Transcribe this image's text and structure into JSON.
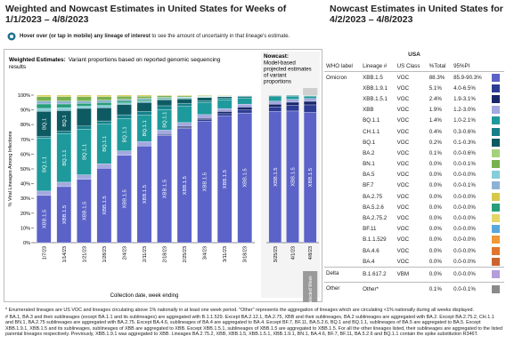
{
  "header": {
    "left_title": "Weighted and Nowcast Estimates in United States for Weeks of 1/1/2023 – 4/8/2023",
    "right_title": "Nowcast Estimates in United States for 4/2/2023 – 4/8/2023",
    "hover_bold": "Hover over (or tap in mobile) any lineage of interest",
    "hover_rest": "to see the amount of uncertainty in that lineage's estimate."
  },
  "chart_data": [
    {
      "type": "bar",
      "stacked": true,
      "title": "Weighted Estimates:",
      "subtitle": "Variant proportions based on reported genomic sequencing results",
      "ylabel": "% Viral Lineages Among Infections",
      "xlabel": "Collection date, week ending",
      "categories": [
        "1/7/23",
        "1/14/23",
        "1/21/23",
        "1/28/23",
        "2/4/23",
        "2/11/23",
        "2/18/23",
        "2/25/23",
        "3/4/23",
        "3/11/23",
        "3/18/23"
      ],
      "ylim": [
        0,
        100
      ],
      "yticks": [
        {
          "value": 0,
          "label": "0%"
        },
        {
          "value": 10,
          "label": "10%"
        },
        {
          "value": 20,
          "label": "20%"
        },
        {
          "value": 30,
          "label": "30%"
        },
        {
          "value": 40,
          "label": "40%"
        },
        {
          "value": 50,
          "label": "50%"
        },
        {
          "value": 60,
          "label": "60%"
        },
        {
          "value": 70,
          "label": "70%"
        },
        {
          "value": 80,
          "label": "80%"
        },
        {
          "value": 90,
          "label": "90%"
        },
        {
          "value": 100,
          "label": "100%"
        }
      ],
      "series": [
        {
          "name": "XBB.1.5",
          "color": "#5b63c8",
          "values": [
            32,
            38,
            43,
            50.5,
            59.2,
            65.5,
            72.8,
            77.4,
            82.3,
            85.9,
            87.9
          ]
        },
        {
          "name": "XBB.1.9.1",
          "color": "#2c3c94",
          "values": [
            0,
            0,
            0,
            0,
            0,
            0,
            0,
            0.5,
            1,
            1.5,
            2
          ]
        },
        {
          "name": "XBB.1.5.1",
          "color": "#18266b",
          "values": [
            0,
            0,
            0,
            0,
            0,
            0,
            0.5,
            1,
            1,
            1.5,
            2
          ]
        },
        {
          "name": "XBB",
          "color": "#a3a8df",
          "values": [
            3,
            3,
            3,
            3,
            3,
            3,
            3,
            2.5,
            2.5,
            2,
            2
          ]
        },
        {
          "name": "BQ.1.1",
          "color": "#1e9a9c",
          "values": [
            36,
            33,
            31,
            27,
            22,
            18,
            14,
            11,
            8,
            6,
            4
          ]
        },
        {
          "name": "CH.1.1",
          "color": "#15808a",
          "values": [
            1,
            1.5,
            2,
            2,
            2.5,
            2.5,
            2.5,
            2,
            1.5,
            1,
            1
          ]
        },
        {
          "name": "BQ.1",
          "color": "#0e5a62",
          "values": [
            17,
            14,
            12,
            9,
            7,
            6,
            4,
            3,
            2,
            1,
            0.5
          ]
        },
        {
          "name": "BA.5",
          "color": "#84cdd9",
          "values": [
            2,
            2,
            1.5,
            1.5,
            1,
            1,
            0.5,
            0.5,
            0.3,
            0.2,
            0.1
          ]
        },
        {
          "name": "BA.5.2.6",
          "color": "#279e7b",
          "values": [
            3,
            2.5,
            2,
            2,
            1.5,
            1,
            0.7,
            0.5,
            0.3,
            0.2,
            0.1
          ]
        },
        {
          "name": "BF.7",
          "color": "#8db2d3",
          "values": [
            2,
            2,
            1.5,
            1.5,
            1,
            0.8,
            0.5,
            0.4,
            0.3,
            0.2,
            0.1
          ]
        },
        {
          "name": "BN.1",
          "color": "#78b14f",
          "values": [
            3,
            3,
            3,
            2.5,
            2,
            1.5,
            1,
            0.8,
            0.5,
            0.3,
            0.2
          ]
        },
        {
          "name": "BA.2.75",
          "color": "#d6c94a",
          "values": [
            1,
            1,
            1,
            1,
            0.8,
            0.7,
            0.5,
            0.4,
            0.3,
            0.2,
            0.1
          ]
        }
      ]
    },
    {
      "type": "bar",
      "stacked": true,
      "title": "Nowcast:",
      "subtitle": "Model-based projected estimates of variant proportions",
      "selected_label": "Selected Week",
      "categories": [
        "3/25/23",
        "4/1/23",
        "4/8/23"
      ],
      "ylim": [
        0,
        100
      ],
      "series": [
        {
          "name": "XBB.1.5",
          "color": "#5b63c8",
          "values": [
            88.9,
            89.2,
            88.3
          ]
        },
        {
          "name": "XBB.1.9.1",
          "color": "#2c3c94",
          "values": [
            3,
            4,
            5.1
          ]
        },
        {
          "name": "XBB.1.5.1",
          "color": "#18266b",
          "values": [
            2,
            2,
            2.4
          ]
        },
        {
          "name": "XBB",
          "color": "#a3a8df",
          "values": [
            2,
            2,
            1.9
          ]
        },
        {
          "name": "BQ.1.1",
          "color": "#1e9a9c",
          "values": [
            3,
            2,
            1.4
          ]
        },
        {
          "name": "CH.1.1",
          "color": "#15808a",
          "values": [
            0.6,
            0.5,
            0.4
          ]
        },
        {
          "name": "BQ.1",
          "color": "#0e5a62",
          "values": [
            0.3,
            0.3,
            0.2
          ]
        }
      ]
    }
  ],
  "table": {
    "region": "USA",
    "headers": [
      "WHO label",
      "Lineage #",
      "US Class",
      "%Total",
      "95%PI"
    ],
    "groups": [
      {
        "label": "Omicron",
        "rows": [
          {
            "lineage": "XBB.1.5",
            "class": "VOC",
            "total": "88.3%",
            "pi": "85.9-90.3%",
            "color": "#5b63c8"
          },
          {
            "lineage": "XBB.1.9.1",
            "class": "VOC",
            "total": "5.1%",
            "pi": "4.0-6.5%",
            "color": "#2c3c94"
          },
          {
            "lineage": "XBB.1.5.1",
            "class": "VOC",
            "total": "2.4%",
            "pi": "1.9-3.1%",
            "color": "#18266b"
          },
          {
            "lineage": "XBB",
            "class": "VOC",
            "total": "1.9%",
            "pi": "1.2-3.0%",
            "color": "#a3a8df"
          },
          {
            "lineage": "BQ.1.1",
            "class": "VOC",
            "total": "1.4%",
            "pi": "1.0-2.1%",
            "color": "#1e9a9c"
          },
          {
            "lineage": "CH.1.1",
            "class": "VOC",
            "total": "0.4%",
            "pi": "0.3-0.6%",
            "color": "#15808a"
          },
          {
            "lineage": "BQ.1",
            "class": "VOC",
            "total": "0.2%",
            "pi": "0.1-0.3%",
            "color": "#0e5a62"
          },
          {
            "lineage": "BA.2",
            "class": "VOC",
            "total": "0.1%",
            "pi": "0.0-0.6%",
            "color": "#a6d17c"
          },
          {
            "lineage": "BN.1",
            "class": "VOC",
            "total": "0.0%",
            "pi": "0.0-0.1%",
            "color": "#78b14f"
          },
          {
            "lineage": "BA.5",
            "class": "VOC",
            "total": "0.0%",
            "pi": "0.0-0.0%",
            "color": "#84cdd9"
          },
          {
            "lineage": "BF.7",
            "class": "VOC",
            "total": "0.0%",
            "pi": "0.0-0.1%",
            "color": "#8db2d3"
          },
          {
            "lineage": "BA.2.75",
            "class": "VOC",
            "total": "0.0%",
            "pi": "0.0-0.0%",
            "color": "#d6c94a"
          },
          {
            "lineage": "BA.5.2.6",
            "class": "VOC",
            "total": "0.0%",
            "pi": "0.0-0.0%",
            "color": "#279e7b"
          },
          {
            "lineage": "BA.2.75.2",
            "class": "VOC",
            "total": "0.0%",
            "pi": "0.0-0.0%",
            "color": "#e3d666"
          },
          {
            "lineage": "BF.11",
            "class": "VOC",
            "total": "0.0%",
            "pi": "0.0-0.0%",
            "color": "#5aa7dd"
          },
          {
            "lineage": "B.1.1.529",
            "class": "VOC",
            "total": "0.0%",
            "pi": "0.0-0.0%",
            "color": "#f09838"
          },
          {
            "lineage": "BA.4.6",
            "class": "VOC",
            "total": "0.0%",
            "pi": "0.0-0.0%",
            "color": "#e1752b"
          },
          {
            "lineage": "BA.4",
            "class": "VOC",
            "total": "0.0%",
            "pi": "0.0-0.0%",
            "color": "#c96530"
          }
        ]
      },
      {
        "label": "Delta",
        "rows": [
          {
            "lineage": "B.1.617.2",
            "class": "VBM",
            "total": "0.0%",
            "pi": "0.0-0.0%",
            "color": "#b39ddb"
          }
        ]
      },
      {
        "label": "Other",
        "rows": [
          {
            "lineage": "Other*",
            "class": "",
            "total": "0.1%",
            "pi": "0.0-0.1%",
            "color": "#8a8a8a"
          }
        ]
      }
    ]
  },
  "footnotes": [
    "*      Enumerated lineages are US VOC and lineages circulating above 1% nationally in at least one week period. \"Other\" represents the aggregation of lineages which are circulating <1% nationally during all weeks displayed.",
    "#      BA.1, BA.3 and their sublineages (except BA.1.1 and its sublineages) are aggregated with B.1.1.529. Except BA.2.12.1, BA.2.75, XBB and their sublineages, BA.2 sublineages are aggregated with BA.2. Except BA.2.75.2, CH.1.1 and BN.1, BA.2.75 sublineages are aggregated with BA.2.75. Except BA.4.6, sublineages of BA.4 are aggregated to BA.4. Except BF.7, BF.11, BA.5.2.6, BQ.1 and BQ.1.1, sublineages of BA.5 are aggregated to BA.5. Except XBB.1.9.1, XBB.1.5 and its sublineages, sublineages of XBB are aggregated to XBB. Except XBB.1.5.1, sublineages of XBB.1.5 are aggregated to XBB.1.5. For all the other lineages listed, their sublineages are aggregated to the listed parental lineages respectively. Previously, XBB.1.9.1 was aggregated to XBB. Lineages BA.2.75.2, XBB, XBB.1.5, XBB.1.5.1, XBB.1.9.1, BN.1, BA.4.6, BF.7, BF.11, BA.5.2.6 and BQ.1.1 contain the spike substitution R346T."
  ]
}
